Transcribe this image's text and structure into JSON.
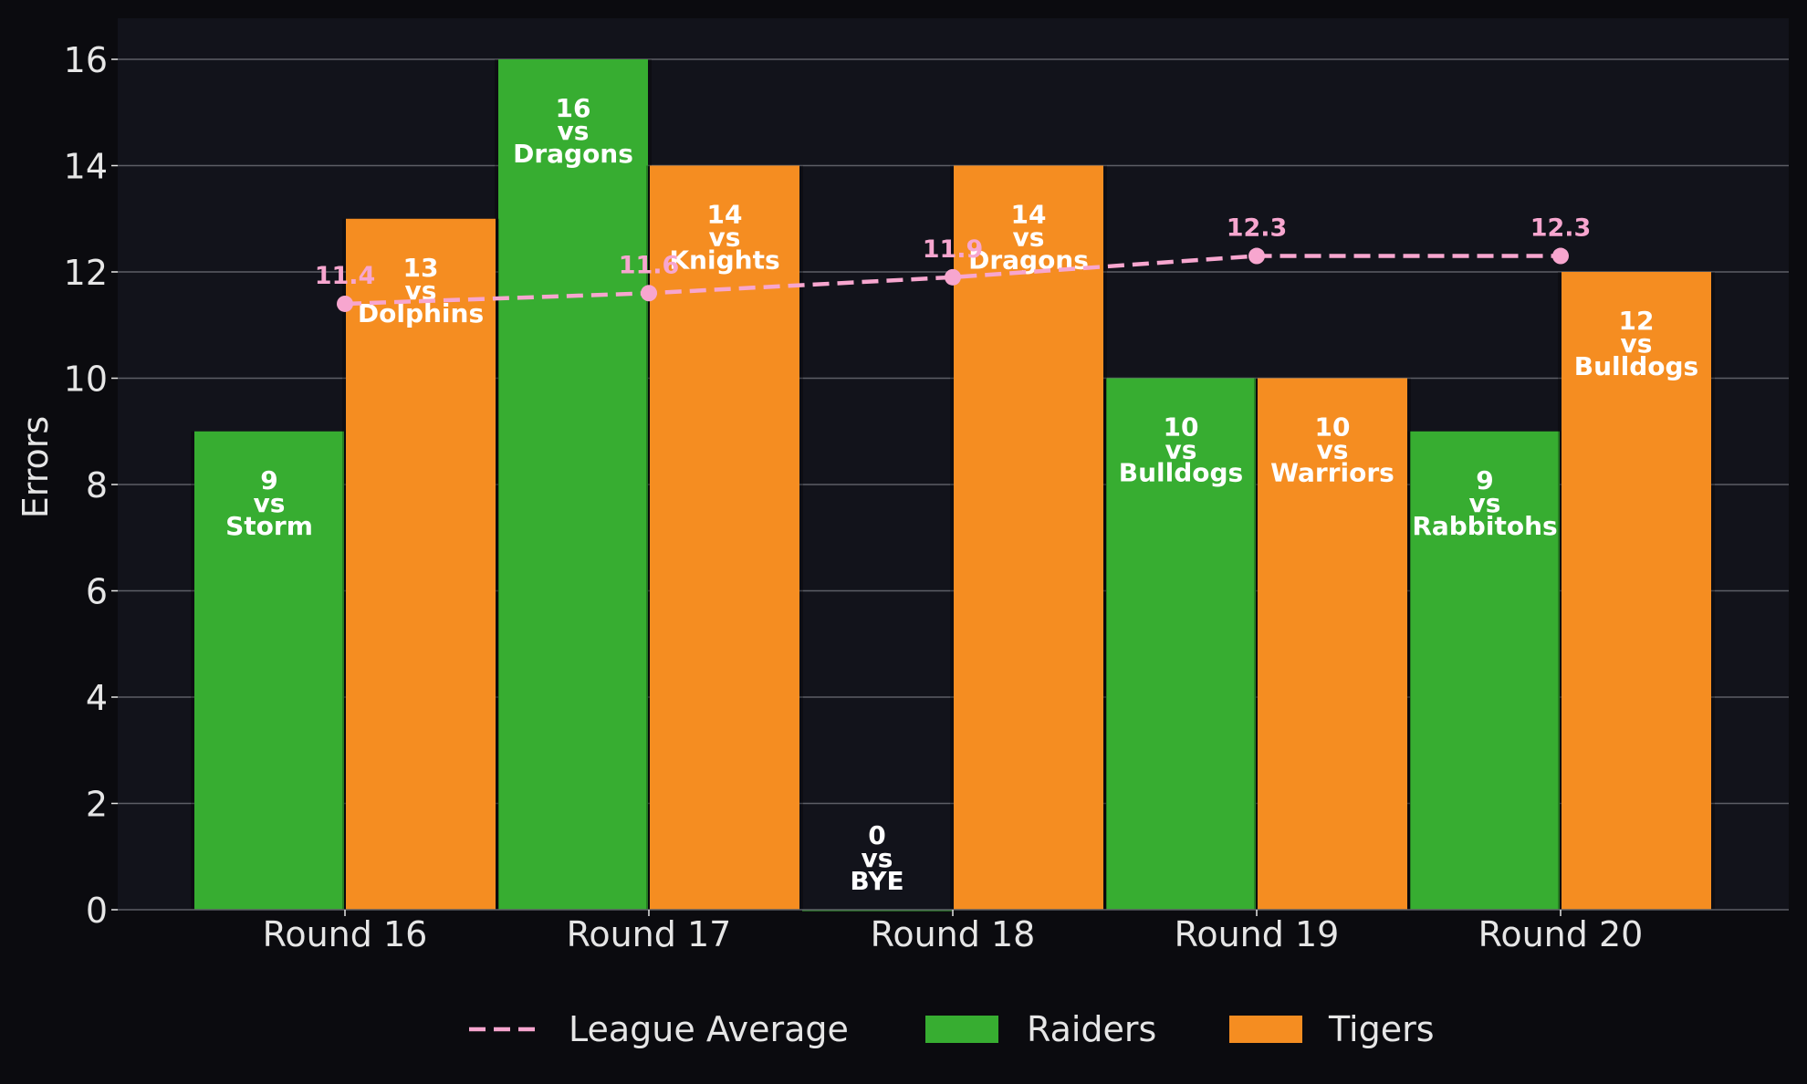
{
  "chart_data": {
    "type": "bar",
    "title": "",
    "xlabel": "",
    "ylabel": "Errors",
    "ylim": [
      0,
      16.8
    ],
    "yticks": [
      0,
      2,
      4,
      6,
      8,
      10,
      12,
      14,
      16
    ],
    "categories": [
      "Round 16",
      "Round 17",
      "Round 18",
      "Round 19",
      "Round 20"
    ],
    "grid": true,
    "legend_position": "bottom",
    "series": [
      {
        "name": "Raiders",
        "type": "bar",
        "color": "#37ad31",
        "values": [
          9,
          16,
          0,
          10,
          9
        ],
        "labels": [
          [
            "9",
            "vs",
            "Storm"
          ],
          [
            "16",
            "vs",
            "Dragons"
          ],
          [
            "0",
            "vs",
            "BYE"
          ],
          [
            "10",
            "vs",
            "Bulldogs"
          ],
          [
            "9",
            "vs",
            "Rabbitohs"
          ]
        ]
      },
      {
        "name": "Tigers",
        "type": "bar",
        "color": "#f58d21",
        "values": [
          13,
          14,
          14,
          10,
          12
        ],
        "labels": [
          [
            "13",
            "vs",
            "Dolphins"
          ],
          [
            "14",
            "vs",
            "Knights"
          ],
          [
            "14",
            "vs",
            "Dragons"
          ],
          [
            "10",
            "vs",
            "Warriors"
          ],
          [
            "12",
            "vs",
            "Bulldogs"
          ]
        ]
      },
      {
        "name": "League Average",
        "type": "line",
        "style": "dashed",
        "color": "#f7a6cf",
        "values": [
          11.4,
          11.6,
          11.9,
          12.3,
          12.3
        ],
        "labels": [
          "11.4",
          "11.6",
          "11.9",
          "12.3",
          "12.3"
        ]
      }
    ],
    "colors": {
      "page_background": "#0b0b0f",
      "plot_background": "#12131b",
      "grid": "#5d5e66",
      "text": "#e6e6e6",
      "bar_label": "#ffffff"
    }
  }
}
